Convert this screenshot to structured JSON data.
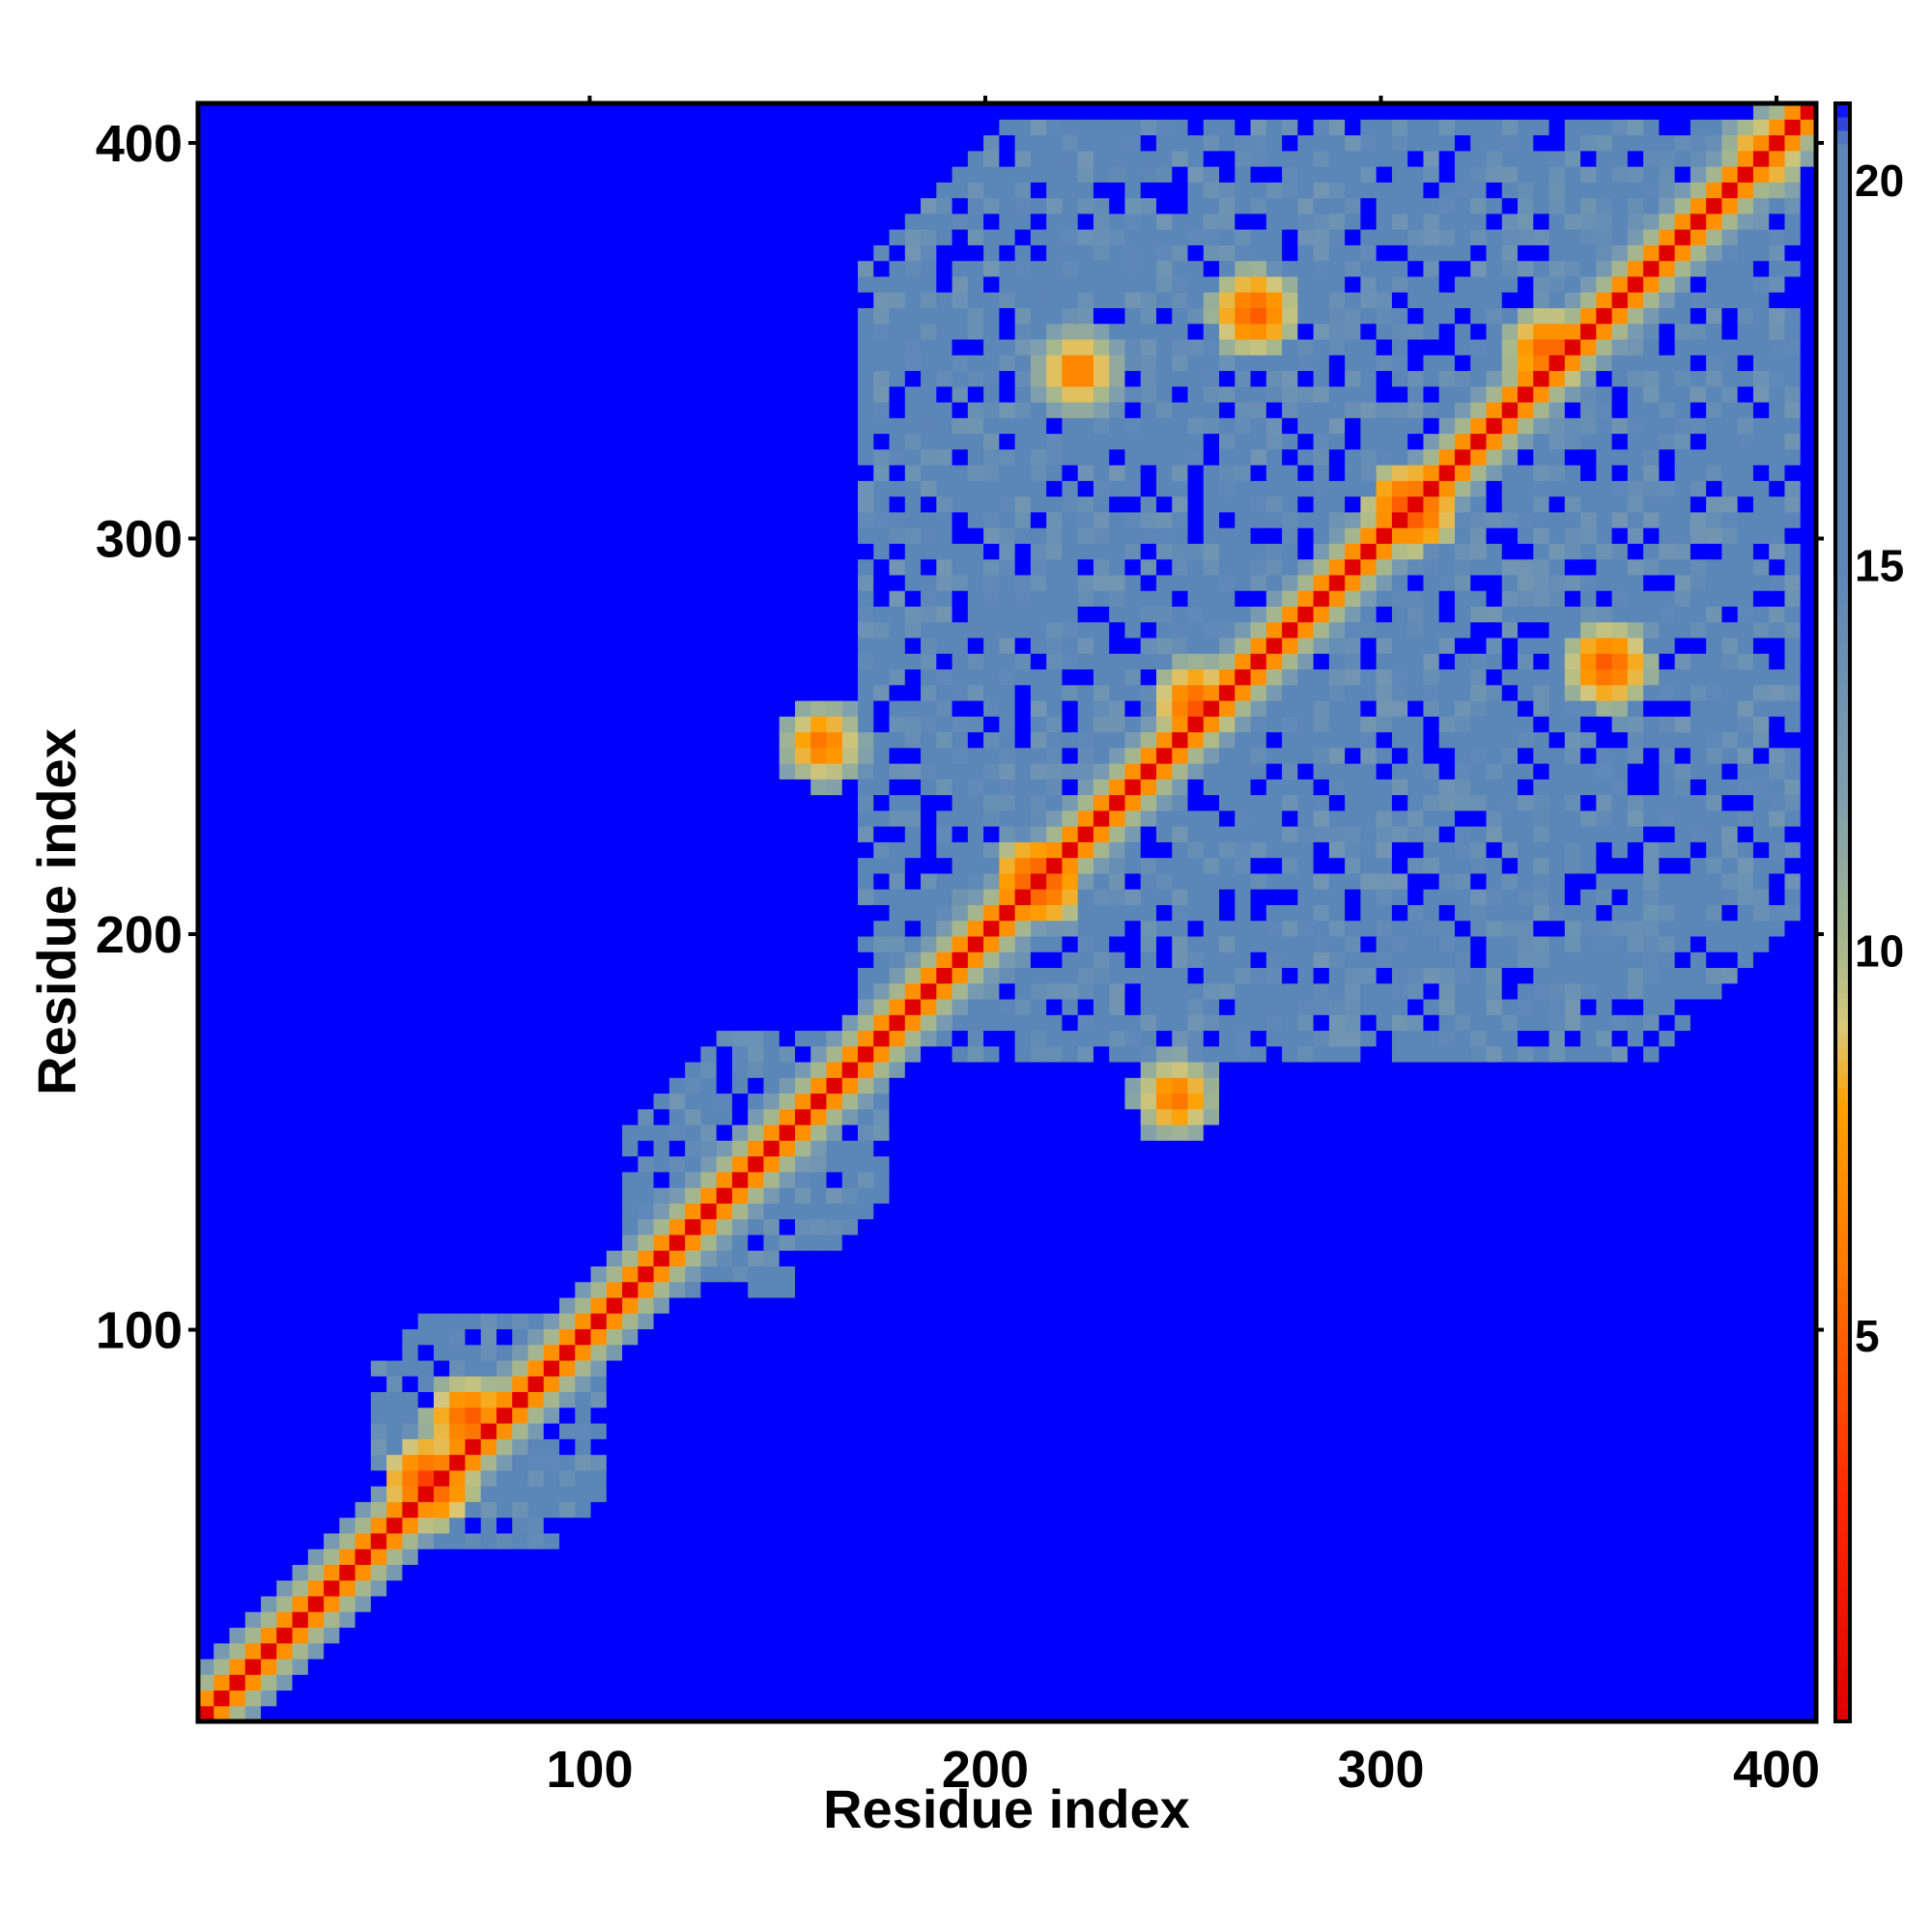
{
  "chart_data": {
    "type": "heatmap",
    "title": "",
    "xlabel": "Residue index",
    "ylabel": "Residue index",
    "xlim": [
      1,
      410
    ],
    "ylim": [
      1,
      410
    ],
    "x_ticks": [
      100,
      200,
      300,
      400
    ],
    "y_ticks": [
      100,
      200,
      300,
      400
    ],
    "colorbar": {
      "range": [
        0,
        21
      ],
      "ticks": [
        5,
        10,
        15,
        20
      ],
      "colors": [
        {
          "value": 0,
          "color": "#e00000"
        },
        {
          "value": 3,
          "color": "#ff2a00"
        },
        {
          "value": 6,
          "color": "#ff7a00"
        },
        {
          "value": 8,
          "color": "#ffa000"
        },
        {
          "value": 9,
          "color": "#d9c878"
        },
        {
          "value": 10,
          "color": "#a9b98a"
        },
        {
          "value": 12,
          "color": "#7f9fae"
        },
        {
          "value": 15,
          "color": "#5b86b8"
        },
        {
          "value": 20.5,
          "color": "#5b86b8"
        },
        {
          "value": 21,
          "color": "#0000ff"
        }
      ]
    },
    "background_value": 21,
    "diagonal_value": 0,
    "sequence_length": 410,
    "contact_domains": [
      {
        "start": 1,
        "end": 40,
        "reach": 10
      },
      {
        "start": 45,
        "end": 105,
        "reach": 45
      },
      {
        "start": 110,
        "end": 175,
        "reach": 40
      },
      {
        "start": 170,
        "end": 410,
        "reach": 200
      }
    ],
    "off_diagonal_contacts": [
      {
        "x": 60,
        "y": 62,
        "value": 3
      },
      {
        "x": 70,
        "y": 78,
        "value": 4
      },
      {
        "x": 160,
        "y": 250,
        "value": 5
      },
      {
        "x": 215,
        "y": 215,
        "value": 3
      },
      {
        "x": 255,
        "y": 260,
        "value": 4
      },
      {
        "x": 270,
        "y": 360,
        "value": 4
      },
      {
        "x": 310,
        "y": 310,
        "value": 3
      },
      {
        "x": 345,
        "y": 350,
        "value": 4
      },
      {
        "x": 360,
        "y": 270,
        "value": 4
      },
      {
        "x": 225,
        "y": 345,
        "value": 5
      },
      {
        "x": 250,
        "y": 160,
        "value": 5
      },
      {
        "x": 400,
        "y": 400,
        "value": 5
      }
    ]
  }
}
